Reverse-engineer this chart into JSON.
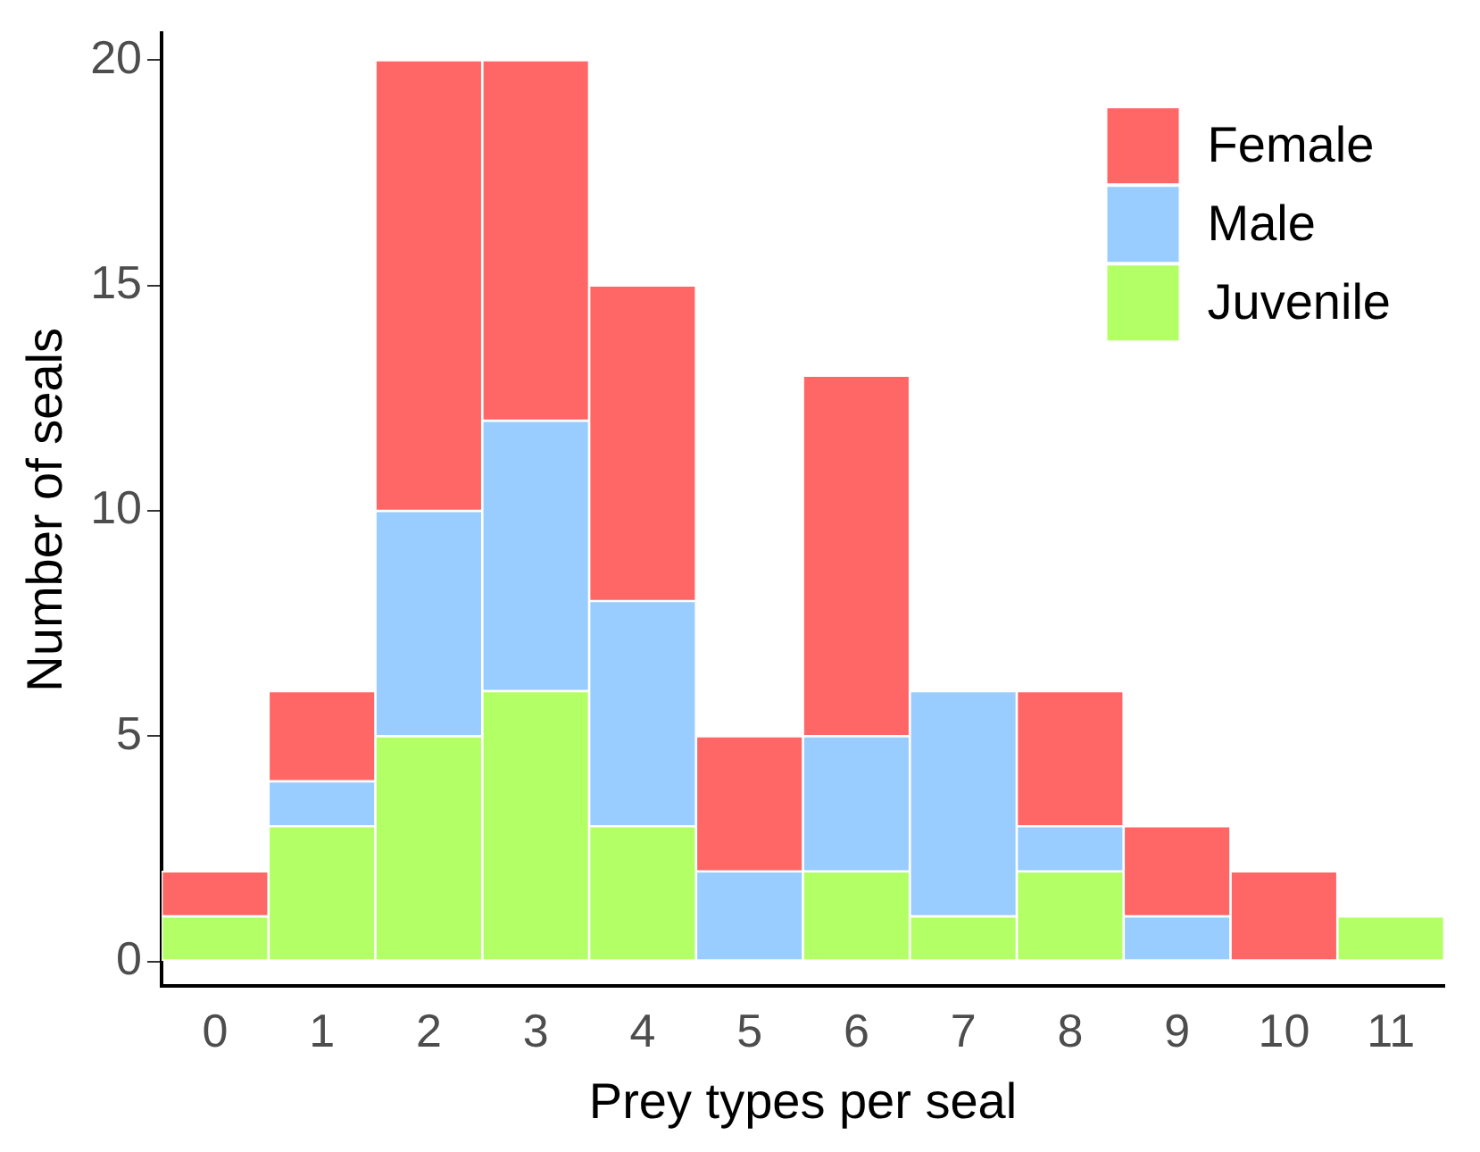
{
  "chart_data": {
    "type": "bar",
    "stacked": true,
    "xlabel": "Prey types per seal",
    "ylabel": "Number of seals",
    "categories": [
      "0",
      "1",
      "2",
      "3",
      "4",
      "5",
      "6",
      "7",
      "8",
      "9",
      "10",
      "11"
    ],
    "series": [
      {
        "name": "Juvenile",
        "color": "#b3ff66",
        "values": [
          1,
          3,
          5,
          6,
          3,
          0,
          2,
          1,
          2,
          0,
          0,
          1
        ]
      },
      {
        "name": "Male",
        "color": "#99ccff",
        "values": [
          0,
          1,
          5,
          6,
          5,
          2,
          3,
          5,
          1,
          1,
          0,
          0
        ]
      },
      {
        "name": "Female",
        "color": "#ff6666",
        "values": [
          1,
          2,
          10,
          8,
          7,
          3,
          8,
          0,
          3,
          2,
          2,
          0
        ]
      }
    ],
    "ylim": [
      -0.55,
      20.6
    ],
    "yticks": [
      0,
      5,
      10,
      15,
      20
    ],
    "grid": false,
    "legend": "top right"
  }
}
